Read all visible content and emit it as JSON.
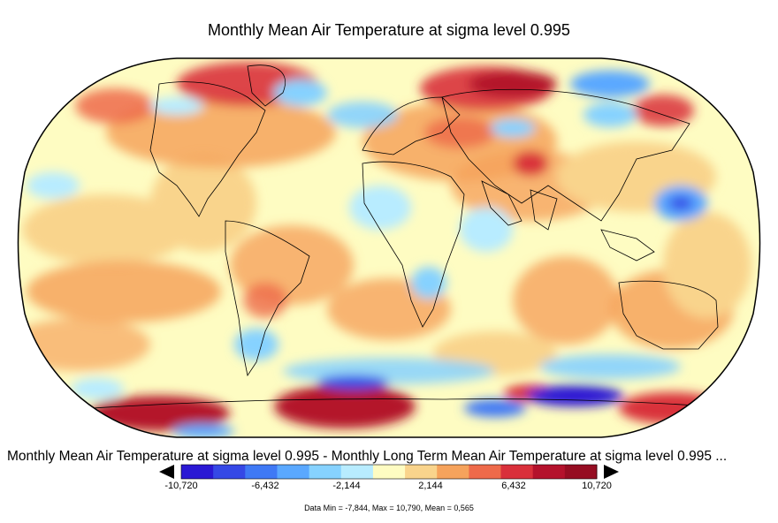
{
  "title": "Monthly Mean Air Temperature at sigma level 0.995",
  "subtitle": "Monthly Mean Air Temperature at sigma level 0.995 - Monthly Long Term Mean Air Temperature at sigma level 0.995 ...",
  "projection": "Robinson",
  "colorbar": {
    "colors": [
      "#2a18d4",
      "#3548e6",
      "#3f79f5",
      "#5aa8ff",
      "#86d2ff",
      "#b8ecff",
      "#fefcc2",
      "#f9d48c",
      "#f6a35c",
      "#ee6a4a",
      "#d9303b",
      "#b4122c",
      "#960d22"
    ],
    "tick_labels": [
      "-10,720",
      "-6,432",
      "-2,144",
      "2,144",
      "6,432",
      "10,720"
    ],
    "tick_values": [
      -10720,
      -6432,
      -2144,
      2144,
      6432,
      10720
    ],
    "min": -10720,
    "max": 10720
  },
  "stats": {
    "text": "Data Min = -7,844, Max = 10,790, Mean = 0,565",
    "data_min": -7844,
    "data_max": 10790,
    "data_mean": 0.565
  },
  "palette": {
    "deep_blue": "#2a18d4",
    "blue": "#3f79f5",
    "light_blue": "#86d2ff",
    "pale_blue": "#b8ecff",
    "cream": "#fefcc2",
    "peach": "#f9d48c",
    "orange": "#f6a35c",
    "red_orange": "#ee6a4a",
    "red": "#d9303b",
    "dark_red": "#b4122c",
    "outline": "#000000"
  }
}
